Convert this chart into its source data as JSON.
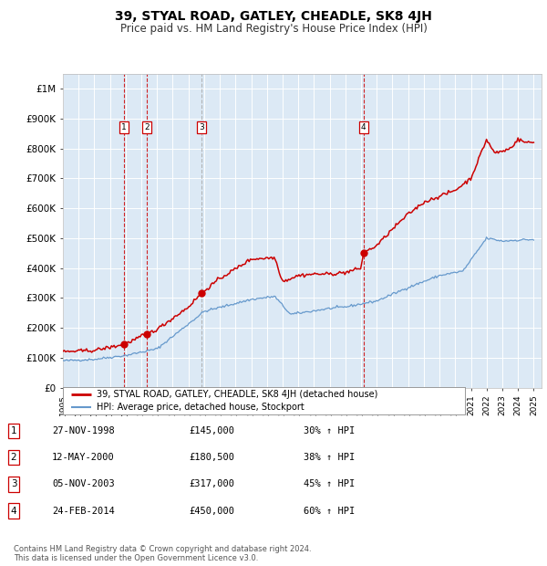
{
  "title": "39, STYAL ROAD, GATLEY, CHEADLE, SK8 4JH",
  "subtitle": "Price paid vs. HM Land Registry's House Price Index (HPI)",
  "title_fontsize": 10,
  "subtitle_fontsize": 8.5,
  "ylim": [
    0,
    1050000
  ],
  "yticks": [
    0,
    100000,
    200000,
    300000,
    400000,
    500000,
    600000,
    700000,
    800000,
    900000,
    1000000
  ],
  "ytick_labels": [
    "£0",
    "£100K",
    "£200K",
    "£300K",
    "£400K",
    "£500K",
    "£600K",
    "£700K",
    "£800K",
    "£900K",
    "£1M"
  ],
  "x_start_year": 1995,
  "x_end_year": 2025,
  "background_color": "#ffffff",
  "plot_bg_color": "#dce9f5",
  "grid_color": "#ffffff",
  "red_line_color": "#cc0000",
  "blue_line_color": "#6699cc",
  "sale_markers": [
    {
      "label": "1",
      "date_year": 1998.91,
      "price": 145000,
      "date_str": "27-NOV-1998",
      "price_str": "£145,000",
      "pct": "30% ↑ HPI"
    },
    {
      "label": "2",
      "date_year": 2000.36,
      "price": 180500,
      "date_str": "12-MAY-2000",
      "price_str": "£180,500",
      "pct": "38% ↑ HPI"
    },
    {
      "label": "3",
      "date_year": 2003.84,
      "price": 317000,
      "date_str": "05-NOV-2003",
      "price_str": "£317,000",
      "pct": "45% ↑ HPI"
    },
    {
      "label": "4",
      "date_year": 2014.15,
      "price": 450000,
      "date_str": "24-FEB-2014",
      "price_str": "£450,000",
      "pct": "60% ↑ HPI"
    }
  ],
  "legend_line1": "39, STYAL ROAD, GATLEY, CHEADLE, SK8 4JH (detached house)",
  "legend_line2": "HPI: Average price, detached house, Stockport",
  "footer1": "Contains HM Land Registry data © Crown copyright and database right 2024.",
  "footer2": "This data is licensed under the Open Government Licence v3.0.",
  "vline_colors": [
    "#cc0000",
    "#cc0000",
    "#aaaaaa",
    "#cc0000"
  ]
}
